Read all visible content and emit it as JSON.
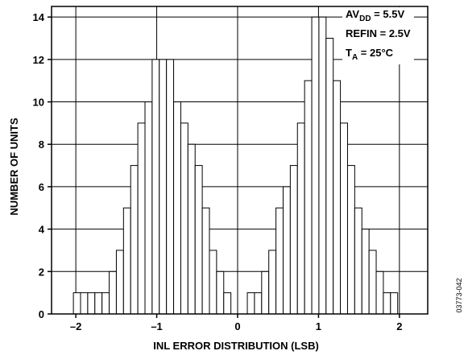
{
  "chart_data": {
    "type": "bar",
    "xlabel": "INL ERROR DISTRIBUTION (LSB)",
    "ylabel": "NUMBER OF UNITS",
    "xlim": [
      -2.3,
      2.35
    ],
    "ylim": [
      0,
      14.5
    ],
    "xticks": [
      -2,
      -1,
      0,
      1,
      2
    ],
    "xtick_labels": [
      "–2",
      "–1",
      "0",
      "1",
      "2"
    ],
    "yticks": [
      0,
      2,
      4,
      6,
      8,
      10,
      12,
      14
    ],
    "ytick_labels": [
      "0",
      "2",
      "4",
      "6",
      "8",
      "10",
      "12",
      "14"
    ],
    "grid": true,
    "bin_width": 0.0885,
    "series": [
      {
        "bins": [
          {
            "x0": -2.03,
            "count": 1
          },
          {
            "x0": -1.9415,
            "count": 1
          },
          {
            "x0": -1.853,
            "count": 1
          },
          {
            "x0": -1.7645,
            "count": 1
          },
          {
            "x0": -1.676,
            "count": 1
          },
          {
            "x0": -1.5875,
            "count": 2
          },
          {
            "x0": -1.499,
            "count": 3
          },
          {
            "x0": -1.4105,
            "count": 5
          },
          {
            "x0": -1.322,
            "count": 7
          },
          {
            "x0": -1.2335,
            "count": 9
          },
          {
            "x0": -1.145,
            "count": 10
          },
          {
            "x0": -1.0565,
            "count": 12
          },
          {
            "x0": -0.968,
            "count": 12
          },
          {
            "x0": -0.8795,
            "count": 12
          },
          {
            "x0": -0.791,
            "count": 10
          },
          {
            "x0": -0.7025,
            "count": 9
          },
          {
            "x0": -0.614,
            "count": 8
          },
          {
            "x0": -0.5255,
            "count": 7
          },
          {
            "x0": -0.437,
            "count": 5
          },
          {
            "x0": -0.3485,
            "count": 3
          },
          {
            "x0": -0.26,
            "count": 2
          },
          {
            "x0": -0.1715,
            "count": 1
          }
        ]
      },
      {
        "bins": [
          {
            "x0": 0.12,
            "count": 1
          },
          {
            "x0": 0.2085,
            "count": 1
          },
          {
            "x0": 0.297,
            "count": 2
          },
          {
            "x0": 0.3855,
            "count": 3
          },
          {
            "x0": 0.474,
            "count": 5
          },
          {
            "x0": 0.5625,
            "count": 6
          },
          {
            "x0": 0.651,
            "count": 7
          },
          {
            "x0": 0.7395,
            "count": 9
          },
          {
            "x0": 0.828,
            "count": 11
          },
          {
            "x0": 0.9165,
            "count": 14
          },
          {
            "x0": 1.005,
            "count": 14
          },
          {
            "x0": 1.0935,
            "count": 13
          },
          {
            "x0": 1.182,
            "count": 11
          },
          {
            "x0": 1.2705,
            "count": 9
          },
          {
            "x0": 1.359,
            "count": 7
          },
          {
            "x0": 1.4475,
            "count": 5
          },
          {
            "x0": 1.536,
            "count": 4
          },
          {
            "x0": 1.6245,
            "count": 3
          },
          {
            "x0": 1.713,
            "count": 2
          },
          {
            "x0": 1.8015,
            "count": 1
          },
          {
            "x0": 1.89,
            "count": 1
          }
        ]
      }
    ],
    "legend": {
      "placement": "top-right",
      "lines": [
        {
          "main": "AV",
          "sub": "DD",
          "rest": " = 5.5V"
        },
        {
          "main": "REFIN = 2.5V",
          "sub": "",
          "rest": ""
        },
        {
          "main": "T",
          "sub": "A",
          "rest": " = 25°C"
        }
      ]
    },
    "figure_id": "03773-042"
  },
  "colors": {
    "bar_fill": "#ffffff",
    "bar_stroke": "#000000",
    "grid": "#000000",
    "background": "#ffffff"
  }
}
